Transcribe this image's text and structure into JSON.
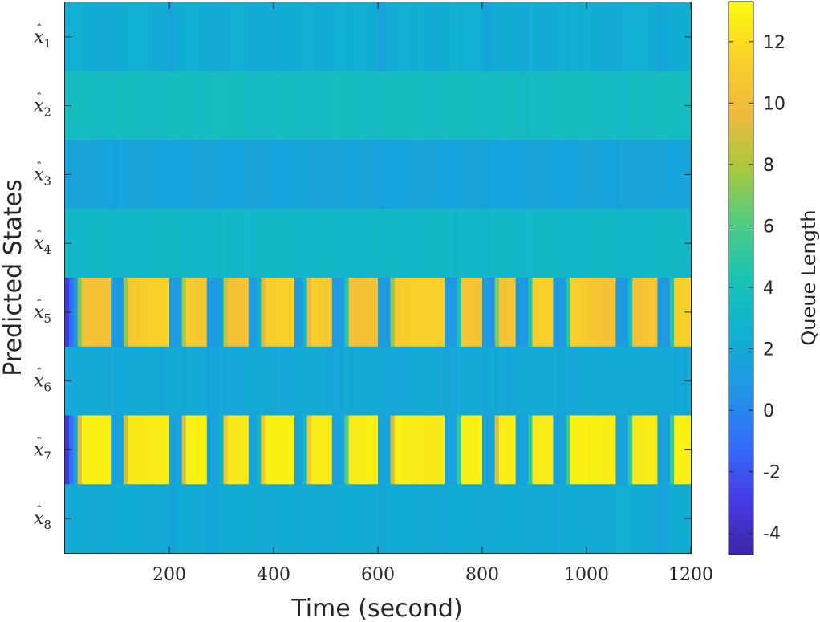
{
  "chart_data": {
    "type": "heatmap",
    "title": "",
    "xlabel": "Time (second)",
    "ylabel": "Predicted States",
    "colorbar_label": "Queue Length",
    "colormap": "parula",
    "xlim": [
      0,
      1200
    ],
    "x_ticks": [
      200,
      400,
      600,
      800,
      1000,
      1200
    ],
    "x_tick_labels": [
      "200",
      "400",
      "600",
      "800",
      "1000",
      "1200"
    ],
    "clim": [
      -4.7,
      13.3
    ],
    "colorbar_ticks": [
      12,
      10,
      8,
      6,
      4,
      2,
      0,
      -2,
      -4
    ],
    "colorbar_tick_labels": [
      "12",
      "10",
      "8",
      "6",
      "4",
      "2",
      "0",
      "-2",
      "-4"
    ],
    "rows": [
      {
        "label": "x",
        "subscript": "1"
      },
      {
        "label": "x",
        "subscript": "2"
      },
      {
        "label": "x",
        "subscript": "3"
      },
      {
        "label": "x",
        "subscript": "4"
      },
      {
        "label": "x",
        "subscript": "5"
      },
      {
        "label": "x",
        "subscript": "6"
      },
      {
        "label": "x",
        "subscript": "7"
      },
      {
        "label": "x",
        "subscript": "8"
      }
    ],
    "row_profiles": [
      {
        "state": "x1",
        "base": 2.3,
        "dip": 1.3,
        "peak": 2.9
      },
      {
        "state": "x2",
        "base": 3.6,
        "dip": 3.3,
        "peak": 3.8
      },
      {
        "state": "x3",
        "base": 1.6,
        "dip": 1.5,
        "peak": 1.7
      },
      {
        "state": "x4",
        "base": 3.2,
        "dip": 2.9,
        "peak": 3.3
      },
      {
        "state": "x5",
        "base": 10.8,
        "dip": 1.0,
        "start": -4.0
      },
      {
        "state": "x6",
        "base": 2.0,
        "dip": 1.6,
        "peak": 2.3
      },
      {
        "state": "x7",
        "base": 12.7,
        "dip": 1.5,
        "start": -4.5
      },
      {
        "state": "x8",
        "base": 2.2,
        "dip": 1.5,
        "peak": 2.6
      }
    ],
    "high_segments": [
      [
        20,
        88
      ],
      [
        108,
        200
      ],
      [
        220,
        275
      ],
      [
        298,
        350
      ],
      [
        370,
        442
      ],
      [
        458,
        510
      ],
      [
        535,
        600
      ],
      [
        620,
        725
      ],
      [
        752,
        800
      ],
      [
        820,
        868
      ],
      [
        888,
        936
      ],
      [
        960,
        1060
      ],
      [
        1080,
        1138
      ],
      [
        1160,
        1200
      ]
    ],
    "grid": false,
    "legend": "none"
  }
}
